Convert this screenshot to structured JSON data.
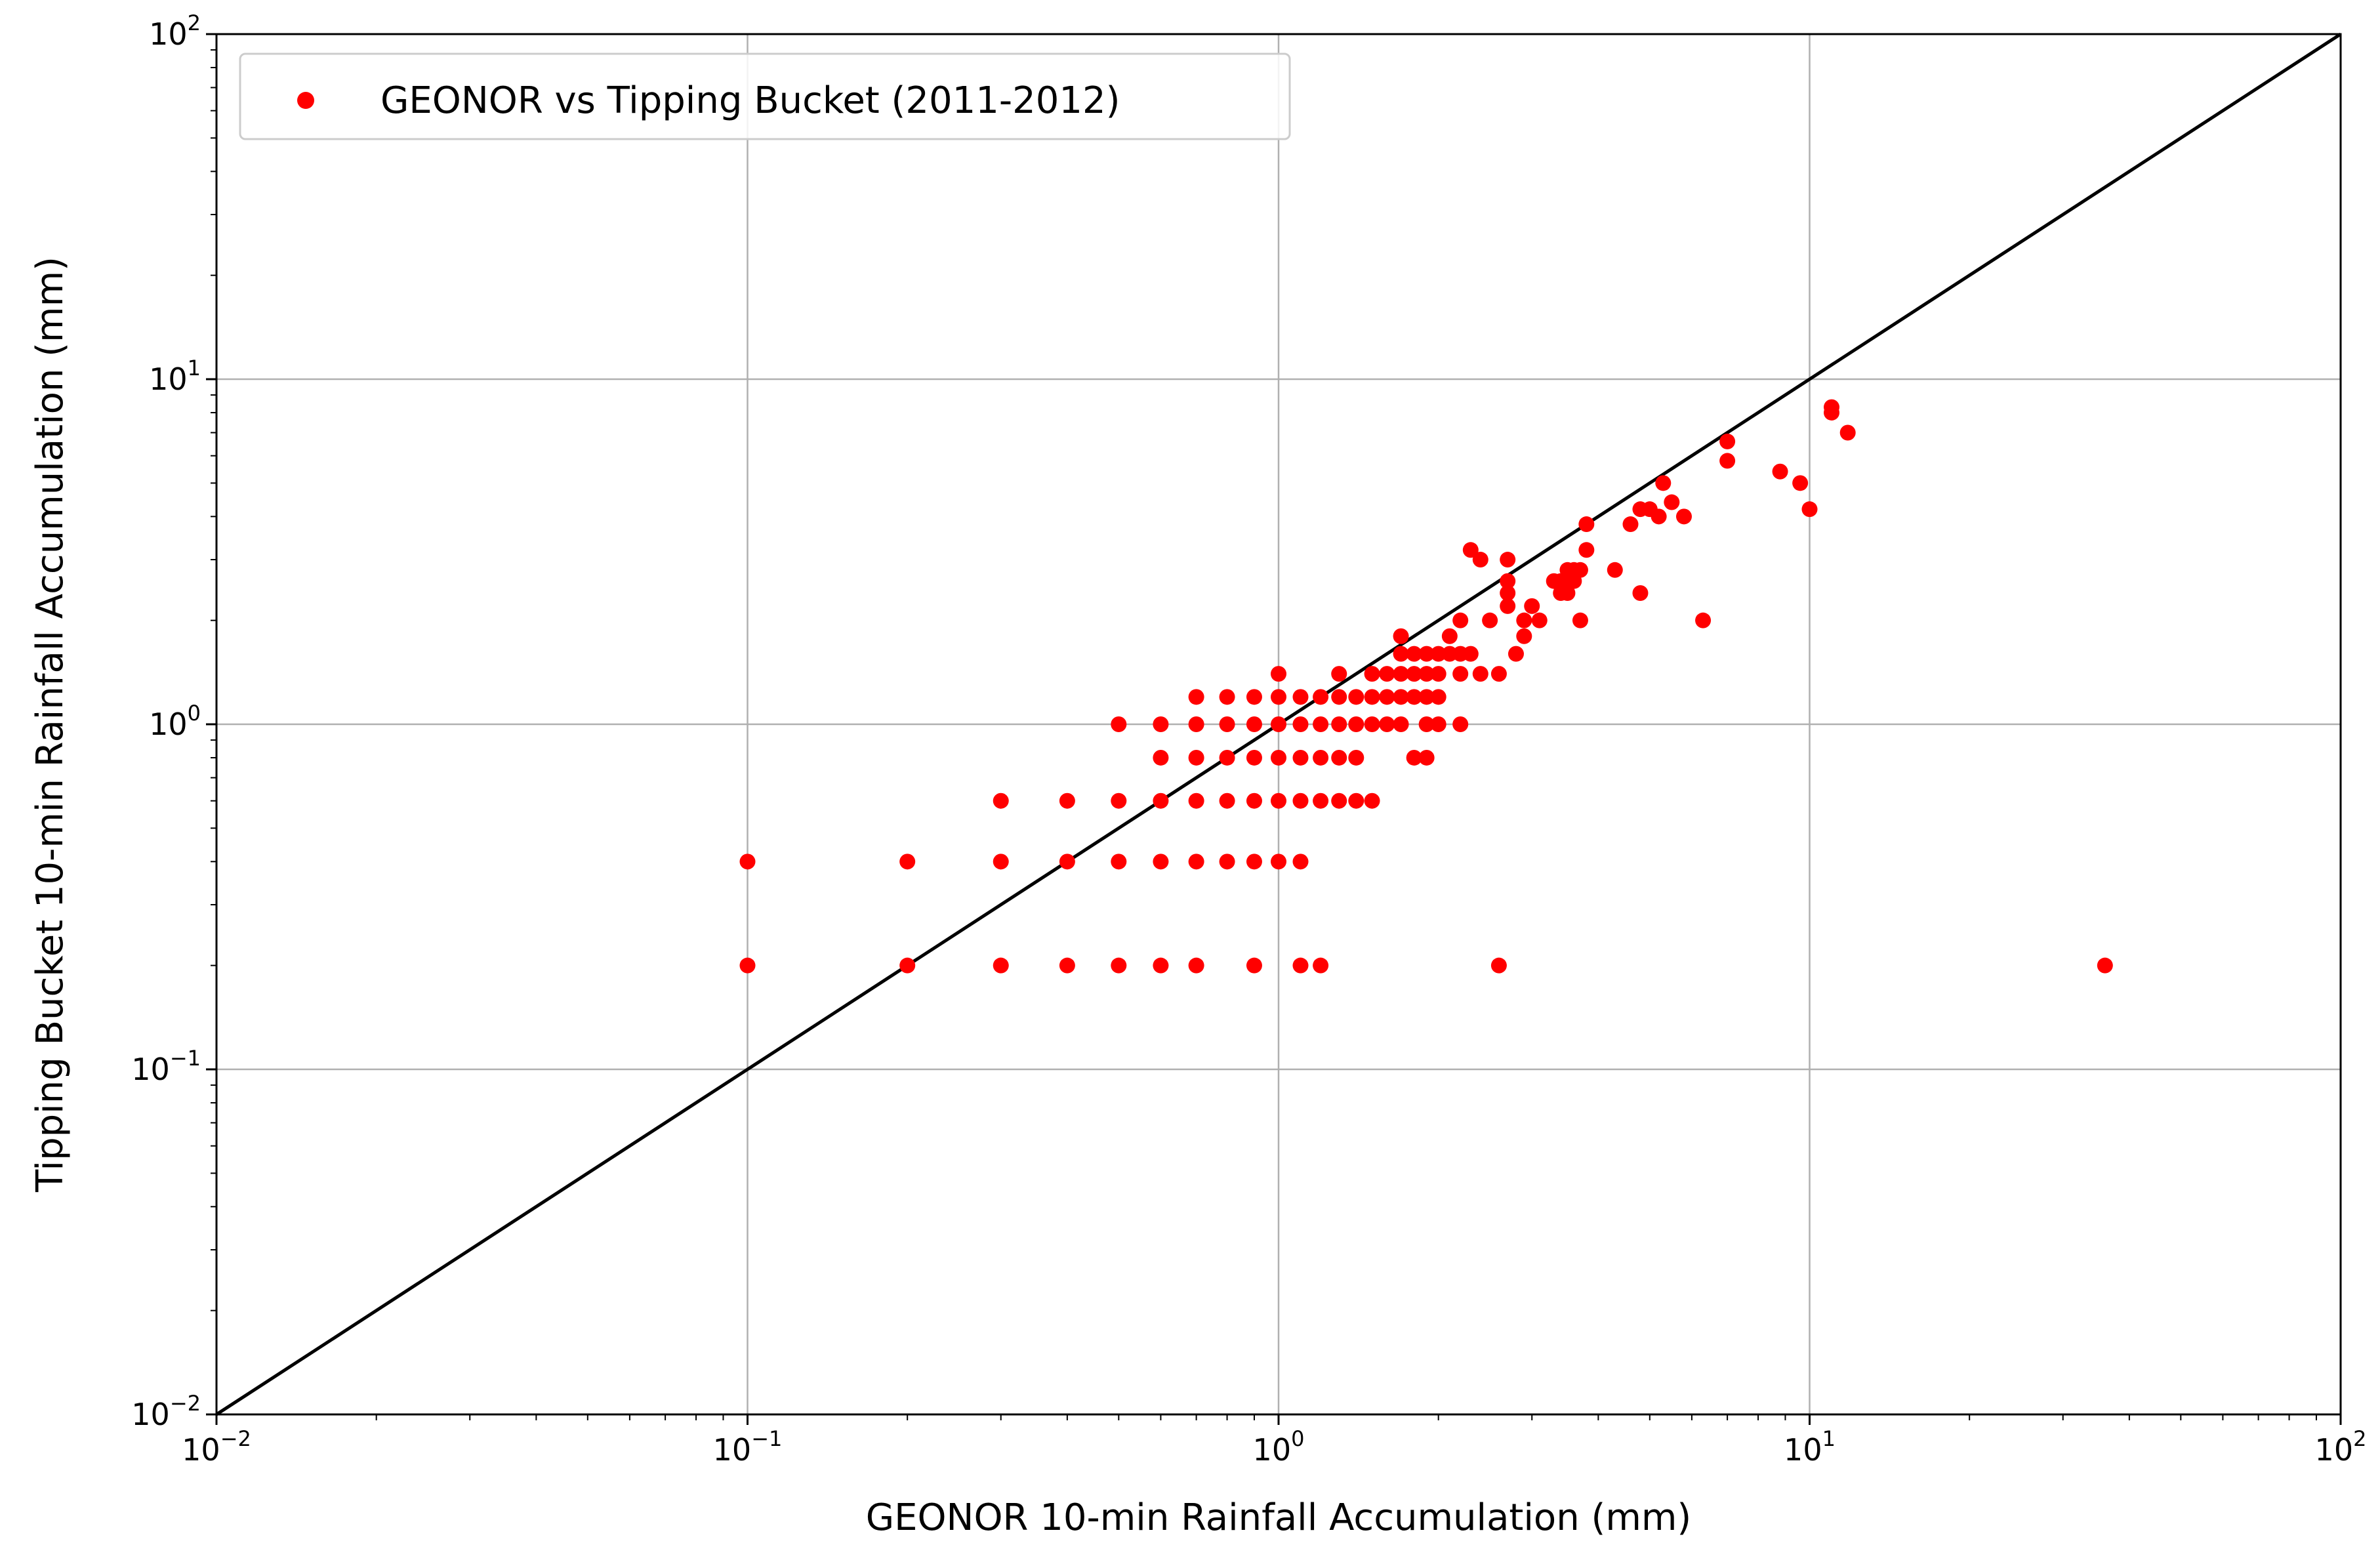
{
  "chart_data": {
    "type": "scatter",
    "title": "",
    "xlabel": "GEONOR 10-min Rainfall Accumulation (mm)",
    "ylabel": "Tipping Bucket 10-min Rainfall Accumulation (mm)",
    "xscale": "log",
    "yscale": "log",
    "xlim": [
      0.01,
      100
    ],
    "ylim": [
      0.01,
      100
    ],
    "grid": true,
    "legend_position": "top-left",
    "x_ticks": [
      {
        "base": "10",
        "exp": "−2",
        "value": 0.01
      },
      {
        "base": "10",
        "exp": "−1",
        "value": 0.1
      },
      {
        "base": "10",
        "exp": "0",
        "value": 1
      },
      {
        "base": "10",
        "exp": "1",
        "value": 10
      },
      {
        "base": "10",
        "exp": "2",
        "value": 100
      }
    ],
    "y_ticks": [
      {
        "base": "10",
        "exp": "−2",
        "value": 0.01
      },
      {
        "base": "10",
        "exp": "−1",
        "value": 0.1
      },
      {
        "base": "10",
        "exp": "0",
        "value": 1
      },
      {
        "base": "10",
        "exp": "1",
        "value": 10
      },
      {
        "base": "10",
        "exp": "2",
        "value": 100
      }
    ],
    "reference_line": {
      "type": "1:1",
      "color": "#000000"
    },
    "series": [
      {
        "name": "GEONOR vs Tipping Bucket (2011-2012)",
        "color": "#ff0000",
        "marker": "circle",
        "points": [
          [
            0.1,
            0.2
          ],
          [
            0.1,
            0.4
          ],
          [
            0.2,
            0.2
          ],
          [
            0.2,
            0.4
          ],
          [
            0.3,
            0.2
          ],
          [
            0.3,
            0.4
          ],
          [
            0.3,
            0.6
          ],
          [
            0.4,
            0.2
          ],
          [
            0.4,
            0.4
          ],
          [
            0.4,
            0.6
          ],
          [
            0.5,
            0.2
          ],
          [
            0.5,
            0.4
          ],
          [
            0.5,
            0.6
          ],
          [
            0.5,
            1.0
          ],
          [
            0.6,
            0.2
          ],
          [
            0.6,
            0.4
          ],
          [
            0.6,
            0.6
          ],
          [
            0.6,
            0.8
          ],
          [
            0.6,
            1.0
          ],
          [
            0.7,
            0.2
          ],
          [
            0.7,
            0.4
          ],
          [
            0.7,
            0.6
          ],
          [
            0.7,
            0.8
          ],
          [
            0.7,
            1.0
          ],
          [
            0.7,
            1.2
          ],
          [
            0.8,
            0.4
          ],
          [
            0.8,
            0.6
          ],
          [
            0.8,
            0.8
          ],
          [
            0.8,
            1.0
          ],
          [
            0.8,
            1.2
          ],
          [
            0.9,
            0.2
          ],
          [
            0.9,
            0.4
          ],
          [
            0.9,
            0.6
          ],
          [
            0.9,
            0.8
          ],
          [
            0.9,
            1.0
          ],
          [
            0.9,
            1.2
          ],
          [
            1.0,
            0.4
          ],
          [
            1.0,
            0.6
          ],
          [
            1.0,
            0.8
          ],
          [
            1.0,
            1.0
          ],
          [
            1.0,
            1.2
          ],
          [
            1.0,
            1.4
          ],
          [
            1.1,
            0.2
          ],
          [
            1.1,
            0.4
          ],
          [
            1.1,
            0.6
          ],
          [
            1.1,
            0.8
          ],
          [
            1.1,
            1.0
          ],
          [
            1.1,
            1.2
          ],
          [
            1.2,
            0.2
          ],
          [
            1.2,
            0.6
          ],
          [
            1.2,
            0.8
          ],
          [
            1.2,
            1.0
          ],
          [
            1.2,
            1.2
          ],
          [
            1.3,
            0.6
          ],
          [
            1.3,
            0.8
          ],
          [
            1.3,
            1.0
          ],
          [
            1.3,
            1.2
          ],
          [
            1.3,
            1.4
          ],
          [
            1.4,
            0.6
          ],
          [
            1.4,
            0.8
          ],
          [
            1.4,
            1.0
          ],
          [
            1.4,
            1.2
          ],
          [
            1.5,
            0.6
          ],
          [
            1.5,
            1.0
          ],
          [
            1.5,
            1.2
          ],
          [
            1.5,
            1.4
          ],
          [
            1.6,
            1.0
          ],
          [
            1.6,
            1.2
          ],
          [
            1.6,
            1.4
          ],
          [
            1.7,
            1.0
          ],
          [
            1.7,
            1.2
          ],
          [
            1.7,
            1.4
          ],
          [
            1.7,
            1.6
          ],
          [
            1.7,
            1.8
          ],
          [
            1.8,
            0.8
          ],
          [
            1.8,
            1.2
          ],
          [
            1.8,
            1.4
          ],
          [
            1.8,
            1.6
          ],
          [
            1.9,
            0.8
          ],
          [
            1.9,
            1.0
          ],
          [
            1.9,
            1.2
          ],
          [
            1.9,
            1.4
          ],
          [
            1.9,
            1.6
          ],
          [
            2.0,
            1.0
          ],
          [
            2.0,
            1.2
          ],
          [
            2.0,
            1.4
          ],
          [
            2.0,
            1.6
          ],
          [
            2.1,
            1.6
          ],
          [
            2.1,
            1.8
          ],
          [
            2.2,
            1.0
          ],
          [
            2.2,
            1.4
          ],
          [
            2.2,
            1.6
          ],
          [
            2.2,
            2.0
          ],
          [
            2.3,
            1.6
          ],
          [
            2.3,
            3.2
          ],
          [
            2.4,
            1.4
          ],
          [
            2.4,
            3.0
          ],
          [
            2.5,
            2.0
          ],
          [
            2.6,
            0.2
          ],
          [
            2.6,
            1.4
          ],
          [
            2.7,
            2.2
          ],
          [
            2.7,
            2.4
          ],
          [
            2.7,
            2.6
          ],
          [
            2.7,
            3.0
          ],
          [
            2.8,
            1.6
          ],
          [
            2.9,
            1.8
          ],
          [
            2.9,
            2.0
          ],
          [
            3.0,
            2.2
          ],
          [
            3.1,
            2.0
          ],
          [
            3.3,
            2.6
          ],
          [
            3.4,
            2.4
          ],
          [
            3.4,
            2.6
          ],
          [
            3.5,
            2.4
          ],
          [
            3.5,
            2.8
          ],
          [
            3.6,
            2.6
          ],
          [
            3.6,
            2.8
          ],
          [
            3.7,
            2.0
          ],
          [
            3.7,
            2.8
          ],
          [
            3.8,
            3.2
          ],
          [
            3.8,
            3.8
          ],
          [
            4.3,
            2.8
          ],
          [
            4.6,
            3.8
          ],
          [
            4.8,
            4.2
          ],
          [
            4.8,
            2.4
          ],
          [
            5.0,
            4.2
          ],
          [
            5.2,
            4.0
          ],
          [
            5.3,
            5.0
          ],
          [
            5.5,
            4.4
          ],
          [
            5.8,
            4.0
          ],
          [
            6.3,
            2.0
          ],
          [
            7.0,
            5.8
          ],
          [
            7.0,
            6.6
          ],
          [
            8.8,
            5.4
          ],
          [
            9.6,
            5.0
          ],
          [
            10.0,
            4.2
          ],
          [
            11.0,
            8.0
          ],
          [
            11.0,
            8.3
          ],
          [
            11.8,
            7.0
          ],
          [
            36.0,
            0.2
          ]
        ]
      }
    ]
  }
}
